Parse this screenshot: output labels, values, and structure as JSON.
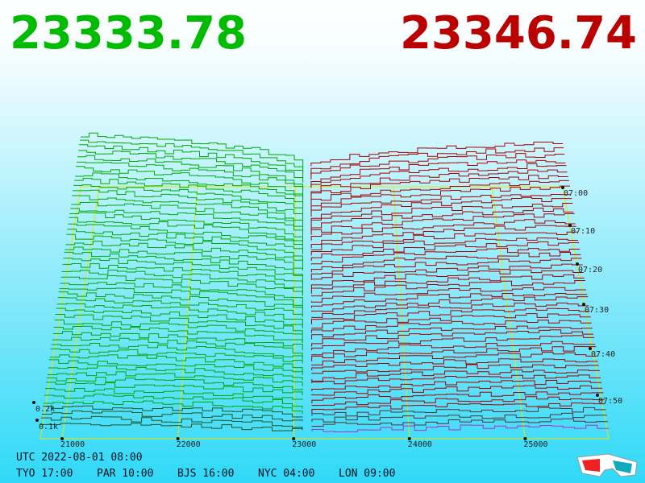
{
  "bid_price": "23333.78",
  "ask_price": "23346.74",
  "price_axis": {
    "ticks": [
      "21000",
      "22000",
      "23000",
      "24000",
      "25000"
    ]
  },
  "depth_axis": {
    "ticks": [
      "0.1k",
      "0.2k"
    ]
  },
  "time_axis": {
    "ticks": [
      "07:00",
      "07:10",
      "07:20",
      "07:30",
      "07:40",
      "07:50"
    ]
  },
  "clock": {
    "utc": "UTC 2022-08-01 08:00",
    "zones": [
      "TYO 17:00",
      "PAR 10:00",
      "BJS 16:00",
      "NYC 04:00",
      "LON 09:00"
    ]
  }
}
